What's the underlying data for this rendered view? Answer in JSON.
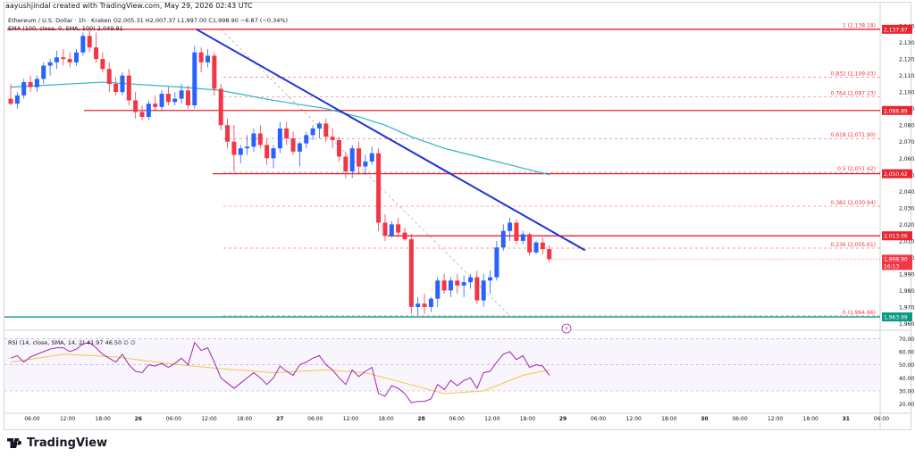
{
  "header": {
    "creator_line": "aayushjindal created with TradingView.com, May 29, 2026 02:43 UTC"
  },
  "legend": {
    "symbol_line": "Ethereum / U.S. Dollar · 1h · Kraken  O2,005.31  H2,007.37  L1,997.00  C1,998.90  −6.87 (−0.34%)",
    "ema_line": "EMA (100, close, 0, SMA, 100)  2,049.81",
    "rsi_line": "RSI (14, close, SMA, 14, 2)  41.97  46.50  ∅  ∅"
  },
  "footer": {
    "brand": "TradingView"
  },
  "colors": {
    "up": "#2962ff",
    "down": "#f23645",
    "ema": "#26b5c6",
    "trend": "#1e32d8",
    "level": "#e8242f",
    "fib": "#f23645",
    "rsi": "#9c27b0",
    "rsi_ma": "#f5c542",
    "rsi_band": "#ede3f5",
    "rsi_pane_bg": "#f9f5fc",
    "support": "#089981"
  },
  "chart_data": {
    "type": "candlestick",
    "title": "Ethereum / U.S. Dollar · 1h · Kraken",
    "ylim": [
      1957,
      2146
    ],
    "y_ticks": [
      1960,
      1970,
      1980,
      1990,
      2000,
      2010,
      2020,
      2030,
      2040,
      2050,
      2060,
      2070,
      2080,
      2090,
      2100,
      2110,
      2120,
      2130,
      2140
    ],
    "x_tick_labels": [
      "06:00",
      "12:00",
      "18:00",
      "26",
      "06:00",
      "12:00",
      "18:00",
      "27",
      "06:00",
      "12:00",
      "18:00",
      "28",
      "06:00",
      "12:00",
      "18:00",
      "29",
      "06:00",
      "12:00",
      "18:00",
      "30",
      "06:00",
      "12:00",
      "18:00",
      "31",
      "06:00"
    ],
    "candles": [
      [
        2096,
        2105,
        2092,
        2093
      ],
      [
        2093,
        2100,
        2090,
        2098
      ],
      [
        2098,
        2108,
        2096,
        2106
      ],
      [
        2106,
        2110,
        2100,
        2103
      ],
      [
        2103,
        2110,
        2100,
        2108
      ],
      [
        2108,
        2118,
        2105,
        2116
      ],
      [
        2116,
        2120,
        2110,
        2118
      ],
      [
        2118,
        2125,
        2114,
        2121
      ],
      [
        2121,
        2126,
        2116,
        2120
      ],
      [
        2120,
        2124,
        2115,
        2118
      ],
      [
        2118,
        2126,
        2116,
        2124
      ],
      [
        2124,
        2136,
        2122,
        2134
      ],
      [
        2134,
        2138,
        2124,
        2127
      ],
      [
        2127,
        2136,
        2118,
        2120
      ],
      [
        2120,
        2124,
        2112,
        2114
      ],
      [
        2114,
        2118,
        2100,
        2105
      ],
      [
        2105,
        2109,
        2098,
        2100
      ],
      [
        2100,
        2112,
        2098,
        2110
      ],
      [
        2110,
        2114,
        2092,
        2095
      ],
      [
        2095,
        2100,
        2084,
        2088
      ],
      [
        2088,
        2092,
        2083,
        2085
      ],
      [
        2085,
        2095,
        2083,
        2093
      ],
      [
        2093,
        2098,
        2089,
        2091
      ],
      [
        2091,
        2101,
        2089,
        2099
      ],
      [
        2099,
        2103,
        2092,
        2094
      ],
      [
        2094,
        2100,
        2092,
        2096
      ],
      [
        2096,
        2105,
        2093,
        2101
      ],
      [
        2101,
        2104,
        2090,
        2092
      ],
      [
        2092,
        2128,
        2090,
        2124
      ],
      [
        2124,
        2127,
        2112,
        2118
      ],
      [
        2118,
        2126,
        2115,
        2122
      ],
      [
        2122,
        2124,
        2098,
        2102
      ],
      [
        2102,
        2105,
        2077,
        2080
      ],
      [
        2080,
        2084,
        2066,
        2070
      ],
      [
        2070,
        2080,
        2052,
        2062
      ],
      [
        2062,
        2068,
        2057,
        2066
      ],
      [
        2066,
        2074,
        2062,
        2067
      ],
      [
        2067,
        2078,
        2064,
        2075
      ],
      [
        2075,
        2080,
        2066,
        2068
      ],
      [
        2068,
        2072,
        2056,
        2060
      ],
      [
        2060,
        2068,
        2054,
        2066
      ],
      [
        2066,
        2082,
        2063,
        2078
      ],
      [
        2078,
        2082,
        2068,
        2072
      ],
      [
        2072,
        2076,
        2062,
        2064
      ],
      [
        2064,
        2070,
        2055,
        2069
      ],
      [
        2069,
        2076,
        2066,
        2074
      ],
      [
        2074,
        2080,
        2071,
        2078
      ],
      [
        2078,
        2082,
        2072,
        2081
      ],
      [
        2081,
        2084,
        2070,
        2073
      ],
      [
        2073,
        2078,
        2066,
        2071
      ],
      [
        2071,
        2073,
        2058,
        2061
      ],
      [
        2061,
        2064,
        2048,
        2052
      ],
      [
        2052,
        2068,
        2048,
        2066
      ],
      [
        2066,
        2070,
        2050,
        2055
      ],
      [
        2055,
        2062,
        2050,
        2058
      ],
      [
        2058,
        2067,
        2056,
        2063
      ],
      [
        2063,
        2066,
        2016,
        2021
      ],
      [
        2021,
        2026,
        2010,
        2013
      ],
      [
        2013,
        2022,
        2012,
        2020
      ],
      [
        2020,
        2024,
        2012,
        2015
      ],
      [
        2015,
        2018,
        2010,
        2011
      ],
      [
        2011,
        2014,
        1966,
        1970
      ],
      [
        1970,
        1976,
        1965,
        1972
      ],
      [
        1972,
        1978,
        1966,
        1970
      ],
      [
        1970,
        1976,
        1967,
        1975
      ],
      [
        1975,
        1988,
        1970,
        1986
      ],
      [
        1986,
        1990,
        1978,
        1980
      ],
      [
        1980,
        1988,
        1976,
        1986
      ],
      [
        1986,
        1990,
        1978,
        1983
      ],
      [
        1983,
        1989,
        1976,
        1985
      ],
      [
        1985,
        1990,
        1981,
        1988
      ],
      [
        1988,
        1992,
        1972,
        1974
      ],
      [
        1974,
        1990,
        1970,
        1986
      ],
      [
        1986,
        1992,
        1978,
        1988
      ],
      [
        1988,
        2010,
        1986,
        2006
      ],
      [
        2006,
        2020,
        2004,
        2016
      ],
      [
        2016,
        2024,
        2010,
        2021
      ],
      [
        2021,
        2023,
        2008,
        2010
      ],
      [
        2010,
        2016,
        2008,
        2014
      ],
      [
        2014,
        2015,
        2001,
        2003
      ],
      [
        2003,
        2010,
        2002,
        2009
      ],
      [
        2009,
        2012,
        2002,
        2005
      ],
      [
        2005,
        2007.37,
        1997,
        1998.9
      ]
    ],
    "ema": [
      [
        0,
        2103
      ],
      [
        14,
        2106
      ],
      [
        26,
        2103
      ],
      [
        32,
        2101
      ],
      [
        40,
        2095
      ],
      [
        48,
        2090
      ],
      [
        53,
        2085
      ],
      [
        57,
        2080
      ],
      [
        61,
        2073
      ],
      [
        66,
        2066
      ],
      [
        72,
        2060
      ],
      [
        76,
        2056
      ],
      [
        80,
        2052
      ],
      [
        82,
        2050
      ]
    ],
    "trendline": {
      "from": [
        28,
        2138
      ],
      "to": [
        85,
        2007
      ]
    },
    "horizontal_levels": [
      {
        "value": 2138,
        "label": "2,137.97"
      },
      {
        "value": 2088.89,
        "label": "2,088.89"
      },
      {
        "value": 2050.62,
        "label": "2,050.62"
      },
      {
        "value": 2013.06,
        "label": "2,013.06"
      },
      {
        "value": 1963.99,
        "label": "1,963.99"
      }
    ],
    "fib_levels": [
      {
        "value": 2138.18,
        "label": "1 (2,138.18)"
      },
      {
        "value": 2109.03,
        "label": "0.832 (2,109.03)"
      },
      {
        "value": 2097.23,
        "label": "0.764 (2,097.23)"
      },
      {
        "value": 2071.9,
        "label": "0.618 (2,071.90)"
      },
      {
        "value": 2051.42,
        "label": "0.5 (2,051.42)"
      },
      {
        "value": 2030.94,
        "label": "0.382 (2,030.94)"
      },
      {
        "value": 2005.61,
        "label": "0.236 (2,005.61)"
      },
      {
        "value": 1964.66,
        "label": "0 (1,964.66)"
      }
    ],
    "last_price": {
      "value": 1998.9,
      "label": "1,998.90",
      "countdown": "16:13"
    },
    "rsi": {
      "ylim": [
        15,
        75
      ],
      "ticks": [
        20,
        30,
        40,
        50,
        60,
        70
      ],
      "band": [
        30,
        70
      ],
      "values": [
        55,
        57,
        52,
        56,
        58,
        60,
        62,
        63,
        63,
        60,
        62,
        66,
        67,
        63,
        58,
        55,
        52,
        58,
        50,
        45,
        44,
        50,
        49,
        51,
        48,
        51,
        55,
        50,
        67,
        61,
        63,
        52,
        40,
        36,
        32,
        36,
        40,
        44,
        40,
        35,
        40,
        49,
        45,
        42,
        50,
        52,
        55,
        57,
        50,
        46,
        40,
        35,
        46,
        41,
        45,
        48,
        28,
        26,
        34,
        32,
        28,
        21,
        22,
        22,
        24,
        35,
        31,
        38,
        34,
        38,
        40,
        32,
        44,
        45,
        52,
        58,
        60,
        54,
        57,
        48,
        50,
        49,
        42
      ],
      "ma": [
        [
          0,
          52
        ],
        [
          8,
          58
        ],
        [
          16,
          56
        ],
        [
          24,
          51
        ],
        [
          32,
          47
        ],
        [
          40,
          44
        ],
        [
          48,
          46
        ],
        [
          54,
          44
        ],
        [
          60,
          36
        ],
        [
          66,
          28
        ],
        [
          72,
          30
        ],
        [
          78,
          42
        ],
        [
          82,
          46
        ]
      ]
    }
  }
}
